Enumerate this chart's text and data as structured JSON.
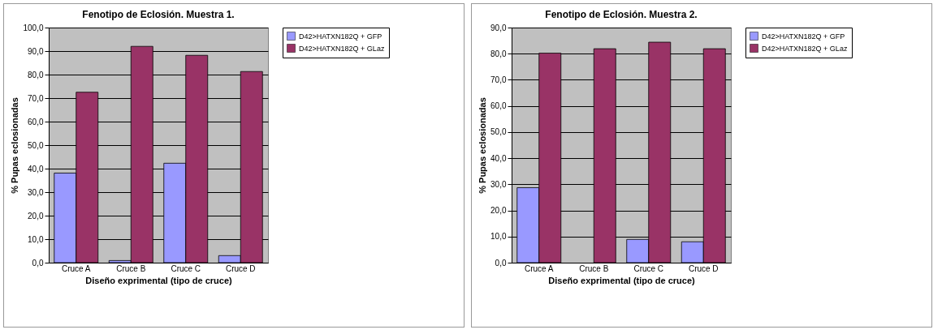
{
  "chart_data": [
    {
      "type": "bar",
      "title": "Fenotipo de Eclosión. Muestra 1.",
      "xlabel": "Diseño exprimental (tipo de cruce)",
      "ylabel": "% Pupas eclosionadas",
      "categories": [
        "Cruce A",
        "Cruce B",
        "Cruce C",
        "Cruce D"
      ],
      "series": [
        {
          "name": "D42>HATXN182Q + GFP",
          "color": "#9999ff",
          "values": [
            38.1,
            0.9,
            42.3,
            3.0
          ]
        },
        {
          "name": "D42>HATXN182Q + GLaz",
          "color": "#993366",
          "values": [
            72.5,
            92.0,
            88.2,
            81.3
          ]
        }
      ],
      "ylim": [
        0,
        100
      ],
      "yticks": [
        {
          "value": 0,
          "label": "0,0"
        },
        {
          "value": 10,
          "label": "10,0"
        },
        {
          "value": 20,
          "label": "20,0"
        },
        {
          "value": 30,
          "label": "30,0"
        },
        {
          "value": 40,
          "label": "40,0"
        },
        {
          "value": 50,
          "label": "50,0"
        },
        {
          "value": 60,
          "label": "60,0"
        },
        {
          "value": 70,
          "label": "70,0"
        },
        {
          "value": 80,
          "label": "80,0"
        },
        {
          "value": 90,
          "label": "90,0"
        },
        {
          "value": 100,
          "label": "100,0"
        }
      ],
      "grid": "y",
      "legend": "right"
    },
    {
      "type": "bar",
      "title": "Fenotipo de Eclosión. Muestra 2.",
      "xlabel": "Diseño exprimental (tipo de cruce)",
      "ylabel": "% Pupas eclosionadas",
      "categories": [
        "Cruce A",
        "Cruce B",
        "Cruce C",
        "Cruce D"
      ],
      "series": [
        {
          "name": "D42>HATXN182Q + GFP",
          "color": "#9999ff",
          "values": [
            28.7,
            null,
            8.9,
            8.0
          ]
        },
        {
          "name": "D42>HATXN182Q + GLaz",
          "color": "#993366",
          "values": [
            80.2,
            81.9,
            84.4,
            81.9
          ]
        }
      ],
      "ylim": [
        0,
        90
      ],
      "yticks": [
        {
          "value": 0,
          "label": "0,0"
        },
        {
          "value": 10,
          "label": "10,0"
        },
        {
          "value": 20,
          "label": "20,0"
        },
        {
          "value": 30,
          "label": "30,0"
        },
        {
          "value": 40,
          "label": "40,0"
        },
        {
          "value": 50,
          "label": "50,0"
        },
        {
          "value": 60,
          "label": "60,0"
        },
        {
          "value": 70,
          "label": "70,0"
        },
        {
          "value": 80,
          "label": "80,0"
        },
        {
          "value": 90,
          "label": "90,0"
        }
      ],
      "grid": "y",
      "legend": "right"
    }
  ]
}
